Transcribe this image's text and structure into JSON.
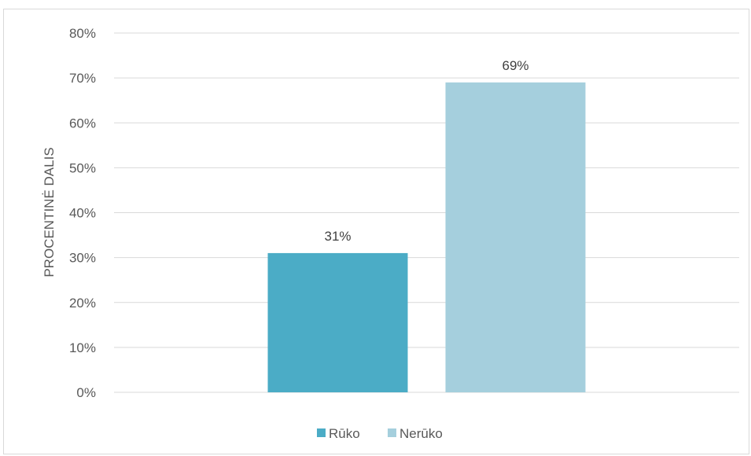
{
  "chart_data": {
    "type": "bar",
    "title": "",
    "xlabel": "",
    "ylabel": "PROCENTINĖ DALIS",
    "ylim": [
      0,
      80
    ],
    "y_tick_step": 10,
    "y_tick_format": "percent",
    "grid": true,
    "legend_position": "bottom",
    "categories": [
      ""
    ],
    "series": [
      {
        "name": "Rūko",
        "values": [
          31
        ],
        "color": "#4bacc6",
        "label": "31%"
      },
      {
        "name": "Nerūko",
        "values": [
          69
        ],
        "color": "#a5cfdd",
        "label": "69%"
      }
    ]
  }
}
